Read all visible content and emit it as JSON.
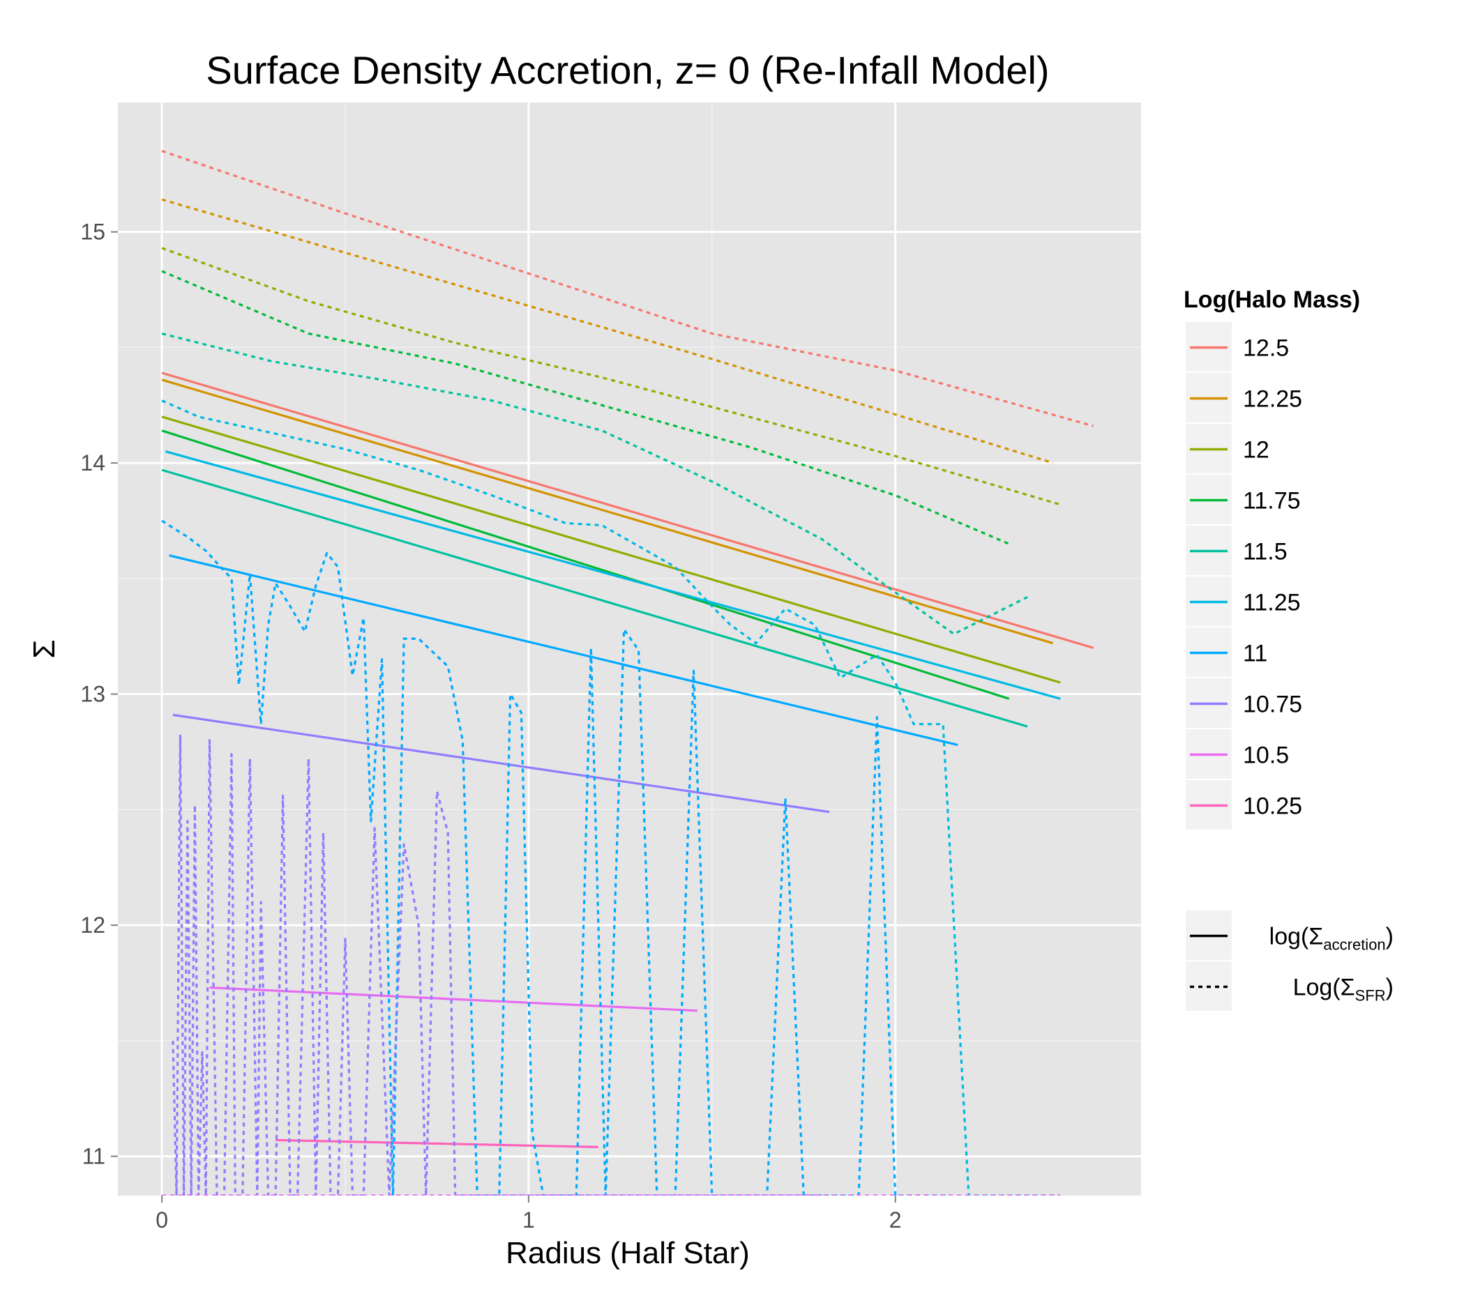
{
  "chart_data": {
    "type": "line",
    "title": "Surface Density Accretion, z= 0 (Re-Infall Model)",
    "xlabel": "Radius (Half Star)",
    "ylabel": "Σ",
    "xlim": [
      -0.12,
      2.67
    ],
    "ylim": [
      10.83,
      15.56
    ],
    "xticks": [
      0,
      1,
      2
    ],
    "yticks": [
      11,
      12,
      13,
      14,
      15
    ],
    "grid": true,
    "legend": {
      "title": "Log(Halo Mass)",
      "placement": "right",
      "entries": [
        {
          "label": "12.5",
          "color": "#F8766D"
        },
        {
          "label": "12.25",
          "color": "#D39200"
        },
        {
          "label": "12",
          "color": "#93AA00"
        },
        {
          "label": "11.75",
          "color": "#00BA38"
        },
        {
          "label": "11.5",
          "color": "#00C19F"
        },
        {
          "label": "11.25",
          "color": "#00B9E3"
        },
        {
          "label": "11",
          "color": "#00A9FF"
        },
        {
          "label": "10.75",
          "color": "#8F7CFF"
        },
        {
          "label": "10.5",
          "color": "#E76BF3"
        },
        {
          "label": "10.25",
          "color": "#FF62BC"
        }
      ],
      "linetypes": [
        {
          "label_main": "log(Σ",
          "label_sub": "accretion",
          "label_end": ")",
          "style": "solid"
        },
        {
          "label_main": "Log(Σ",
          "label_sub": "SFR",
          "label_end": ")",
          "style": "dotted"
        }
      ]
    },
    "series": [
      {
        "name": "12.5",
        "color": "#F8766D",
        "linetype": "solid",
        "x": [
          0.0,
          2.54
        ],
        "y": [
          14.39,
          13.2
        ]
      },
      {
        "name": "12.25",
        "color": "#D39200",
        "linetype": "solid",
        "x": [
          0.0,
          2.43
        ],
        "y": [
          14.36,
          13.22
        ]
      },
      {
        "name": "12",
        "color": "#93AA00",
        "linetype": "solid",
        "x": [
          0.0,
          2.45
        ],
        "y": [
          14.2,
          13.05
        ]
      },
      {
        "name": "11.75",
        "color": "#00BA38",
        "linetype": "solid",
        "x": [
          0.0,
          2.31
        ],
        "y": [
          14.14,
          12.98
        ]
      },
      {
        "name": "11.5",
        "color": "#00C19F",
        "linetype": "solid",
        "x": [
          0.0,
          2.36
        ],
        "y": [
          13.97,
          12.86
        ]
      },
      {
        "name": "11.25",
        "color": "#00B9E3",
        "linetype": "solid",
        "x": [
          0.01,
          2.45
        ],
        "y": [
          14.05,
          12.98
        ]
      },
      {
        "name": "11",
        "color": "#00A9FF",
        "linetype": "solid",
        "x": [
          0.02,
          2.17
        ],
        "y": [
          13.6,
          12.78
        ]
      },
      {
        "name": "10.75",
        "color": "#8F7CFF",
        "linetype": "solid",
        "x": [
          0.03,
          1.82
        ],
        "y": [
          12.91,
          12.49
        ]
      },
      {
        "name": "10.5",
        "color": "#E76BF3",
        "linetype": "solid",
        "x": [
          0.13,
          1.46
        ],
        "y": [
          11.73,
          11.63
        ]
      },
      {
        "name": "10.25",
        "color": "#FF62BC",
        "linetype": "solid",
        "x": [
          0.31,
          1.19
        ],
        "y": [
          11.07,
          11.04
        ]
      },
      {
        "name": "12.5",
        "color": "#F8766D",
        "linetype": "dotted",
        "x": [
          0.0,
          0.5,
          1.0,
          1.5,
          2.0,
          2.54
        ],
        "y": [
          15.35,
          15.08,
          14.82,
          14.56,
          14.4,
          14.16
        ]
      },
      {
        "name": "12.25",
        "color": "#D39200",
        "linetype": "dotted",
        "x": [
          0.0,
          0.5,
          1.0,
          1.5,
          2.0,
          2.43
        ],
        "y": [
          15.14,
          14.91,
          14.68,
          14.45,
          14.21,
          14.0
        ]
      },
      {
        "name": "12",
        "color": "#93AA00",
        "linetype": "dotted",
        "x": [
          0.0,
          0.4,
          0.8,
          1.2,
          1.6,
          2.0,
          2.45
        ],
        "y": [
          14.93,
          14.7,
          14.52,
          14.37,
          14.2,
          14.03,
          13.82
        ]
      },
      {
        "name": "11.75",
        "color": "#00BA38",
        "linetype": "dotted",
        "x": [
          0.0,
          0.4,
          0.8,
          1.2,
          1.6,
          2.0,
          2.31
        ],
        "y": [
          14.83,
          14.56,
          14.43,
          14.25,
          14.07,
          13.86,
          13.65
        ]
      },
      {
        "name": "11.5",
        "color": "#00C19F",
        "linetype": "dotted",
        "x": [
          0.0,
          0.3,
          0.6,
          0.9,
          1.2,
          1.5,
          1.8,
          2.0,
          2.16,
          2.36
        ],
        "y": [
          14.56,
          14.44,
          14.36,
          14.27,
          14.14,
          13.92,
          13.67,
          13.44,
          13.26,
          13.42
        ]
      },
      {
        "name": "11.25",
        "color": "#00B9E3",
        "linetype": "dotted",
        "x": [
          0.0,
          0.1,
          0.3,
          0.5,
          0.7,
          0.9,
          1.0,
          1.1,
          1.2,
          1.4,
          1.5,
          1.55,
          1.62,
          1.7,
          1.78,
          1.85,
          1.95,
          2.0,
          2.05,
          2.13,
          2.2,
          2.25,
          2.45
        ],
        "y": [
          14.27,
          14.2,
          14.13,
          14.06,
          13.97,
          13.86,
          13.8,
          13.74,
          13.73,
          13.55,
          13.38,
          13.3,
          13.22,
          13.37,
          13.3,
          13.07,
          13.17,
          13.05,
          12.87,
          12.87,
          10.83,
          10.83,
          10.83
        ]
      },
      {
        "name": "11",
        "color": "#00A9FF",
        "linetype": "dotted",
        "x": [
          0.0,
          0.03,
          0.07,
          0.12,
          0.16,
          0.19,
          0.21,
          0.24,
          0.27,
          0.29,
          0.31,
          0.35,
          0.39,
          0.42,
          0.45,
          0.48,
          0.52,
          0.55,
          0.57,
          0.6,
          0.63,
          0.66,
          0.7,
          0.74,
          0.78,
          0.82,
          0.86,
          0.88,
          0.92,
          0.95,
          0.98,
          1.01,
          1.04,
          1.08,
          1.13,
          1.17,
          1.21,
          1.26,
          1.3,
          1.35,
          1.4,
          1.45,
          1.5,
          1.55,
          1.6,
          1.65,
          1.7,
          1.75,
          1.8,
          1.85,
          1.9,
          1.95,
          2.0,
          2.05,
          2.15
        ],
        "y": [
          13.75,
          13.72,
          13.68,
          13.62,
          13.55,
          13.5,
          13.04,
          13.52,
          12.87,
          13.3,
          13.48,
          13.38,
          13.27,
          13.47,
          13.61,
          13.55,
          13.08,
          13.33,
          12.45,
          13.15,
          10.83,
          13.24,
          13.24,
          13.18,
          13.12,
          12.8,
          10.83,
          10.83,
          10.83,
          13.0,
          12.92,
          11.1,
          10.83,
          10.83,
          10.83,
          13.2,
          10.83,
          13.28,
          13.19,
          10.83,
          10.83,
          13.1,
          10.83,
          10.83,
          10.83,
          10.83,
          12.55,
          10.83,
          10.83,
          10.83,
          10.83,
          12.9,
          10.83,
          10.83,
          10.83
        ]
      },
      {
        "name": "10.75",
        "color": "#8F7CFF",
        "linetype": "dotted",
        "x": [
          0.03,
          0.04,
          0.05,
          0.06,
          0.07,
          0.08,
          0.09,
          0.1,
          0.11,
          0.12,
          0.13,
          0.15,
          0.17,
          0.19,
          0.2,
          0.22,
          0.24,
          0.26,
          0.27,
          0.29,
          0.31,
          0.33,
          0.35,
          0.37,
          0.4,
          0.42,
          0.44,
          0.46,
          0.48,
          0.5,
          0.52,
          0.55,
          0.58,
          0.62,
          0.66,
          0.7,
          0.72,
          0.75,
          0.78,
          0.8,
          0.82,
          0.85,
          0.9,
          1.0,
          1.1,
          1.2,
          1.3,
          1.4,
          1.5,
          1.6,
          1.7,
          1.8
        ],
        "y": [
          11.5,
          10.83,
          12.82,
          10.83,
          12.45,
          10.83,
          12.52,
          10.83,
          11.45,
          10.83,
          12.8,
          10.83,
          10.83,
          12.74,
          10.83,
          10.83,
          12.72,
          10.83,
          12.1,
          10.83,
          10.83,
          12.56,
          10.83,
          10.83,
          12.72,
          10.83,
          12.4,
          10.83,
          10.83,
          11.94,
          10.83,
          10.83,
          12.42,
          10.83,
          12.35,
          12.0,
          10.83,
          12.58,
          12.4,
          10.83,
          10.83,
          10.83,
          10.83,
          10.83,
          10.83,
          10.83,
          10.83,
          10.83,
          10.83,
          10.83,
          10.83,
          10.83
        ]
      },
      {
        "name": "10.5",
        "color": "#E76BF3",
        "linetype": "dotted",
        "x": [
          0.0,
          0.5,
          1.0,
          1.5,
          2.0,
          2.45
        ],
        "y": [
          10.83,
          10.83,
          10.83,
          10.83,
          10.83,
          10.83
        ]
      }
    ]
  }
}
